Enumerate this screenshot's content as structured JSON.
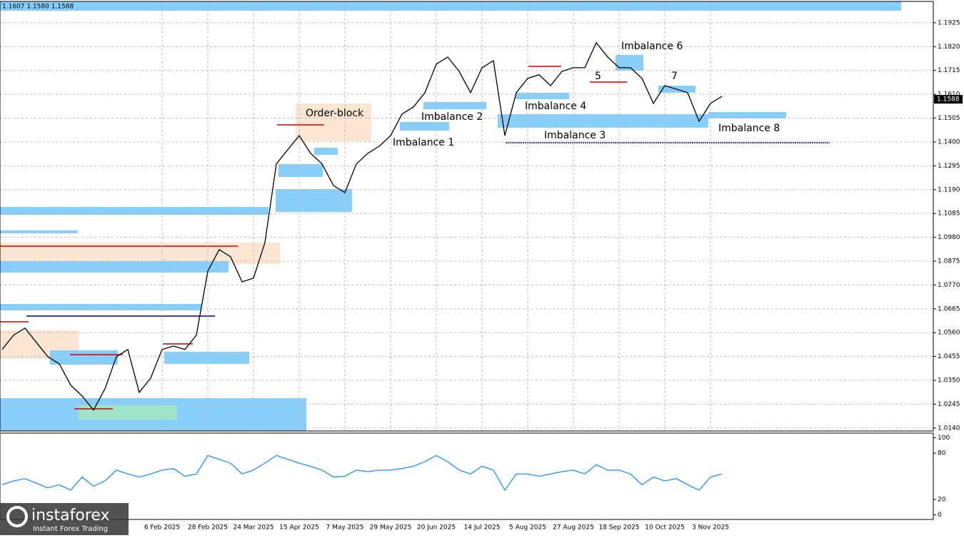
{
  "header": "1.1607 1.1580 1.1588",
  "logo": {
    "brand": "instaforex",
    "tagline": "Instant Forex Trading"
  },
  "annotations": [
    "Order-block",
    "Imbalance 1",
    "Imbalance 2",
    "Imbalance 3",
    "Imbalance 4",
    "5",
    "Imbalance 6",
    "7",
    "Imbalance 8"
  ],
  "last_price": 1.1588,
  "chart_data": [
    {
      "type": "line",
      "categories": [
        null,
        null,
        null,
        null,
        null,
        null,
        null,
        null,
        null,
        null,
        null,
        null,
        null,
        null,
        "6 Feb 2025",
        null,
        null,
        null,
        "28 Feb 2025",
        null,
        null,
        null,
        "24 Mar 2025",
        null,
        null,
        null,
        "15 Apr 2025",
        null,
        null,
        null,
        "7 May 2025",
        null,
        null,
        null,
        "29 May 2025",
        null,
        null,
        null,
        "20 Jun 2025",
        null,
        null,
        null,
        "14 Jul 2025",
        null,
        null,
        null,
        "5 Aug 2025",
        null,
        null,
        null,
        "27 Aug 2025",
        null,
        null,
        null,
        "18 Sep 2025",
        null,
        null,
        null,
        "10 Oct 2025",
        null,
        null,
        null,
        "3 Nov 2025",
        null
      ],
      "values": [
        1.0486,
        1.0549,
        1.058,
        1.0517,
        1.0454,
        1.0423,
        1.0329,
        1.0281,
        1.0219,
        1.0313,
        1.0454,
        1.0486,
        1.0297,
        1.036,
        1.0486,
        1.0501,
        1.0486,
        1.0549,
        1.0831,
        1.0926,
        1.0894,
        1.0784,
        1.08,
        1.0957,
        1.1303,
        1.1366,
        1.1428,
        1.135,
        1.1303,
        1.1208,
        1.1177,
        1.1303,
        1.135,
        1.1381,
        1.1428,
        1.1523,
        1.1554,
        1.1617,
        1.1743,
        1.1774,
        1.1711,
        1.1617,
        1.1727,
        1.1758,
        1.1428,
        1.1617,
        1.168,
        1.1696,
        1.1648,
        1.1711,
        1.1727,
        1.1727,
        1.1837,
        1.1774,
        1.1727,
        1.1727,
        1.168,
        1.157,
        1.1648,
        1.1633,
        1.1617,
        1.1491,
        1.157,
        1.1601
      ],
      "color": "#000000",
      "ylim": [
        1.0127,
        1.2019
      ],
      "yticks": [
        {
          "value": 1.014,
          "label": "1.0140"
        },
        {
          "value": 1.0245,
          "label": "1.0245"
        },
        {
          "value": 1.035,
          "label": "1.0350"
        },
        {
          "value": 1.0455,
          "label": "1.0455"
        },
        {
          "value": 1.056,
          "label": "1.0560"
        },
        {
          "value": 1.0665,
          "label": "1.0665"
        },
        {
          "value": 1.077,
          "label": "1.0770"
        },
        {
          "value": 1.0875,
          "label": "1.0875"
        },
        {
          "value": 1.098,
          "label": "1.0980"
        },
        {
          "value": 1.1085,
          "label": "1.1085"
        },
        {
          "value": 1.119,
          "label": "1.1190"
        },
        {
          "value": 1.1295,
          "label": "1.1295"
        },
        {
          "value": 1.14,
          "label": "1.1400"
        },
        {
          "value": 1.1505,
          "label": "1.1505"
        },
        {
          "value": 1.161,
          "label": "1.1610"
        },
        {
          "value": 1.1715,
          "label": "1.1715"
        },
        {
          "value": 1.182,
          "label": "1.1820"
        },
        {
          "value": 1.1925,
          "label": "1.1925"
        }
      ],
      "grid": true
    },
    {
      "type": "line",
      "values": [
        39,
        44,
        47,
        41,
        35,
        39,
        32,
        49,
        37,
        44,
        58,
        53,
        49,
        53,
        58,
        60,
        50,
        53,
        77,
        72,
        67,
        53,
        58,
        67,
        77,
        72,
        67,
        63,
        58,
        49,
        50,
        58,
        56,
        58,
        58,
        60,
        63,
        69,
        77,
        69,
        58,
        53,
        63,
        58,
        32,
        53,
        53,
        50,
        53,
        56,
        58,
        53,
        65,
        58,
        58,
        53,
        39,
        49,
        44,
        47,
        39,
        32,
        49,
        53
      ],
      "color": "#1e90ff",
      "ylim": [
        -6,
        106
      ],
      "yticks": [
        0,
        20,
        80,
        100
      ]
    }
  ]
}
